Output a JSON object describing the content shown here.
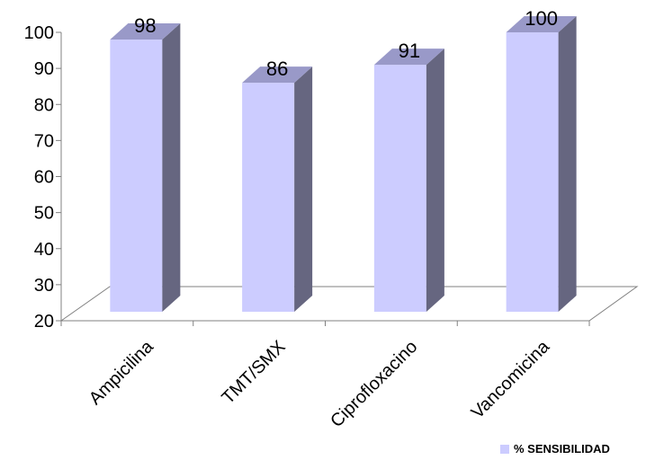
{
  "chart_data": {
    "type": "bar",
    "categories": [
      "Ampicilina",
      "TMT/SMX",
      "Ciprofloxacino",
      "Vancomicina"
    ],
    "series": [
      {
        "name": "% SENSIBILIDAD",
        "values": [
          98,
          86,
          91,
          100
        ]
      }
    ],
    "data_labels": [
      "98",
      "86",
      "91",
      "100"
    ],
    "ylim": [
      20,
      100
    ],
    "yticks": [
      20,
      30,
      40,
      50,
      60,
      70,
      80,
      90,
      100
    ],
    "three_d": true,
    "grid": false,
    "legend": {
      "position": "bottom-right",
      "entries": [
        "% SENSIBILIDAD"
      ]
    },
    "colors": {
      "bar_front": "#ccccff",
      "bar_side": "#666680",
      "bar_top": "#9999c8",
      "floor": "#808080",
      "axis": "#808080"
    }
  }
}
